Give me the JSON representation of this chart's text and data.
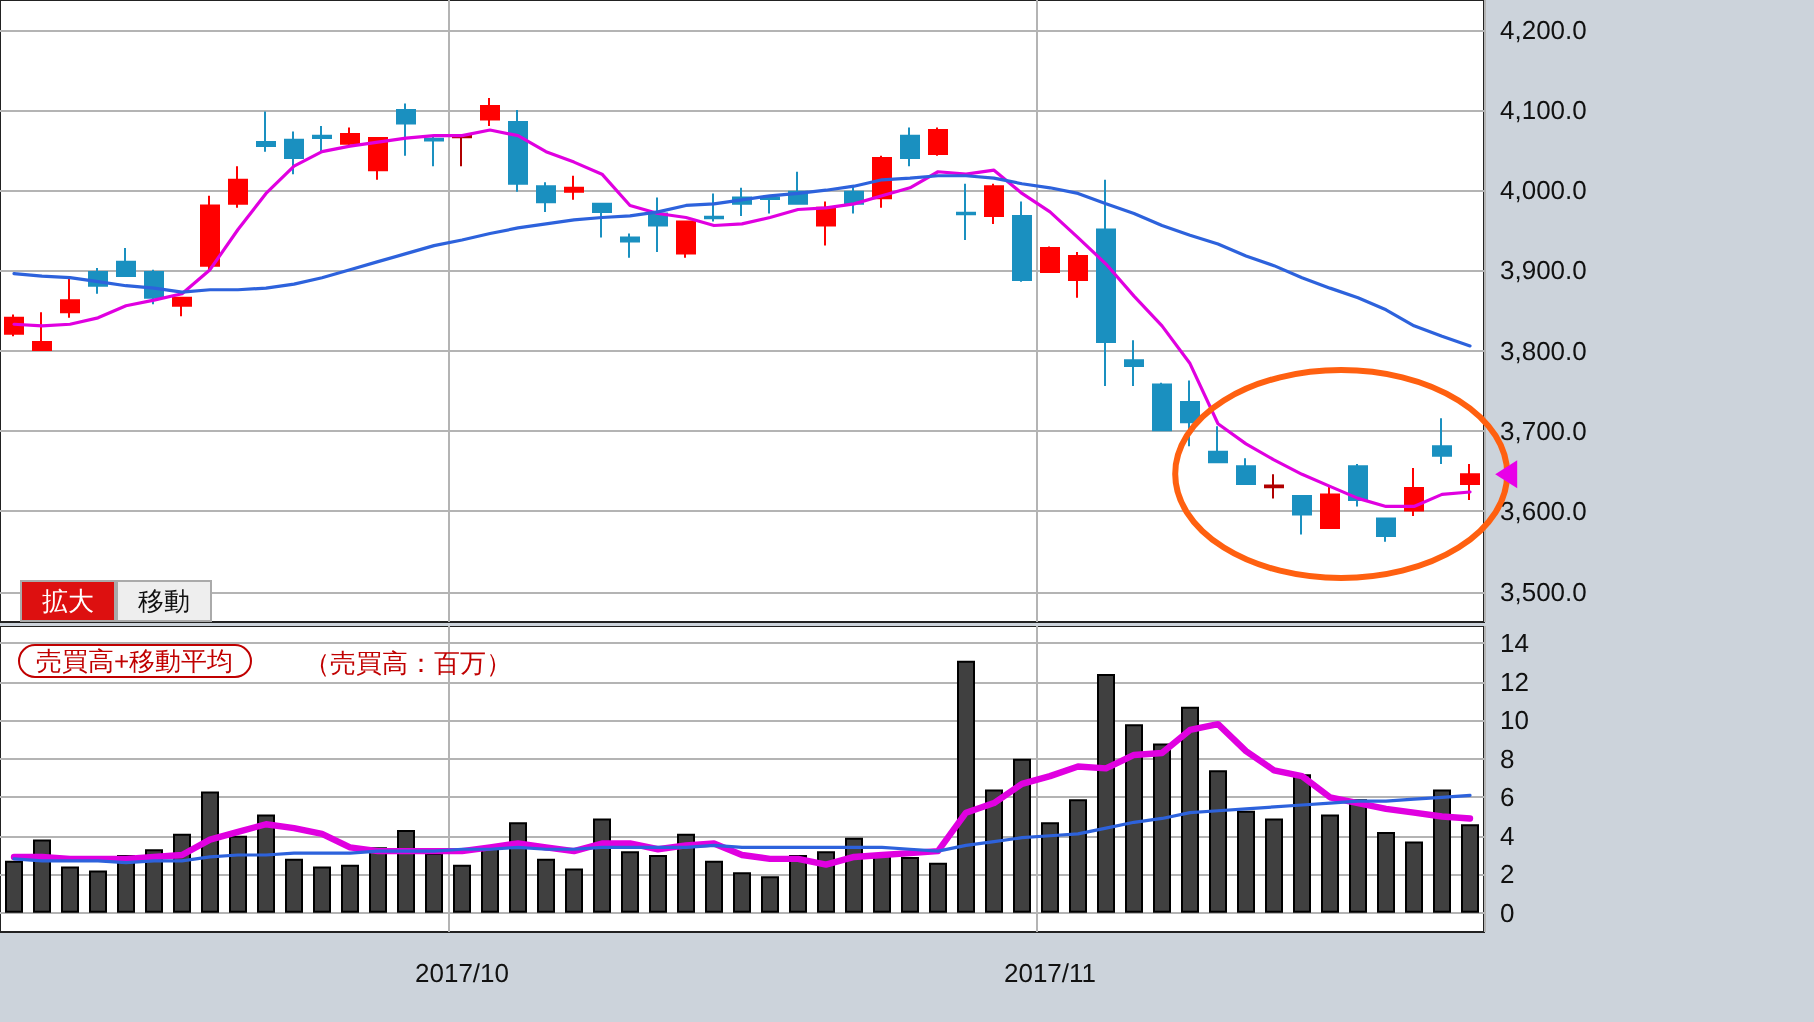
{
  "chart_data": [
    {
      "type": "candlestick",
      "categories": [
        null,
        null,
        null,
        null,
        null,
        null,
        null,
        null,
        null,
        null,
        null,
        null,
        null,
        null,
        null,
        null,
        "2017/10",
        null,
        null,
        null,
        null,
        null,
        null,
        null,
        null,
        null,
        null,
        null,
        null,
        null,
        null,
        null,
        null,
        null,
        null,
        null,
        null,
        "2017/11",
        null,
        null,
        null,
        null,
        null,
        null,
        null,
        null,
        null,
        null,
        null,
        null,
        null,
        null,
        null
      ],
      "ohlc": [
        [
          3821,
          3845,
          3818,
          3841
        ],
        [
          3801,
          3848,
          3800,
          3811
        ],
        [
          3848,
          3891,
          3841,
          3863
        ],
        [
          3898,
          3903,
          3871,
          3881
        ],
        [
          3911,
          3928,
          3892,
          3893
        ],
        [
          3898,
          3901,
          3858,
          3866
        ],
        [
          3856,
          3866,
          3843,
          3866
        ],
        [
          3906,
          3993,
          3898,
          3981
        ],
        [
          3983,
          4030,
          3978,
          4013
        ],
        [
          4060,
          4098,
          4048,
          4055
        ],
        [
          4063,
          4073,
          4020,
          4040
        ],
        [
          4068,
          4080,
          4048,
          4065
        ],
        [
          4058,
          4078,
          4055,
          4070
        ],
        [
          4025,
          4066,
          4013,
          4065
        ],
        [
          4100,
          4108,
          4043,
          4083
        ],
        [
          4064,
          4068,
          4030,
          4062
        ],
        [
          4066,
          4070,
          4030,
          4068
        ],
        [
          4088,
          4115,
          4080,
          4105
        ],
        [
          4085,
          4100,
          3998,
          4008
        ],
        [
          4005,
          4010,
          3973,
          3985
        ],
        [
          3998,
          4018,
          3988,
          4003
        ],
        [
          3983,
          3984,
          3941,
          3973
        ],
        [
          3941,
          3946,
          3916,
          3936
        ],
        [
          3971,
          3991,
          3923,
          3956
        ],
        [
          3921,
          3962,
          3916,
          3961
        ],
        [
          3967,
          3996,
          3961,
          3965
        ],
        [
          3991,
          4003,
          3968,
          3983
        ],
        [
          3991,
          3993,
          3971,
          3989
        ],
        [
          3998,
          4023,
          3982,
          3983
        ],
        [
          3956,
          3986,
          3931,
          3978
        ],
        [
          3998,
          4005,
          3971,
          3983
        ],
        [
          3990,
          4043,
          3978,
          4040
        ],
        [
          4068,
          4078,
          4030,
          4040
        ],
        [
          4045,
          4078,
          4043,
          4075
        ],
        [
          3972,
          4008,
          3938,
          3970
        ],
        [
          3968,
          4008,
          3958,
          4005
        ],
        [
          3968,
          3986,
          3886,
          3888
        ],
        [
          3898,
          3930,
          3898,
          3928
        ],
        [
          3888,
          3923,
          3866,
          3918
        ],
        [
          3951,
          4013,
          3756,
          3811
        ],
        [
          3788,
          3813,
          3756,
          3781
        ],
        [
          3758,
          3760,
          3700,
          3701
        ],
        [
          3736,
          3763,
          3681,
          3711
        ],
        [
          3674,
          3706,
          3660,
          3661
        ],
        [
          3656,
          3666,
          3633,
          3634
        ],
        [
          3630,
          3646,
          3616,
          3632
        ],
        [
          3619,
          3620,
          3571,
          3596
        ],
        [
          3579,
          3631,
          3578,
          3621
        ],
        [
          3656,
          3659,
          3606,
          3614
        ],
        [
          3591,
          3592,
          3562,
          3569
        ],
        [
          3601,
          3654,
          3594,
          3629
        ],
        [
          3681,
          3716,
          3659,
          3669
        ],
        [
          3634,
          3659,
          3614,
          3646
        ]
      ],
      "colors": [
        "#ff0000",
        "#ff0000",
        "#ff0000",
        "#1a90c0",
        "#1a90c0",
        "#1a90c0",
        "#ff0000",
        "#ff0000",
        "#ff0000",
        "#1a90c0",
        "#1a90c0",
        "#1a90c0",
        "#ff0000",
        "#ff0000",
        "#1a90c0",
        "#1a90c0",
        "#b00000",
        "#ff0000",
        "#1a90c0",
        "#1a90c0",
        "#ff0000",
        "#1a90c0",
        "#1a90c0",
        "#1a90c0",
        "#ff0000",
        "#1a90c0",
        "#1a90c0",
        "#1a90c0",
        "#1a90c0",
        "#ff0000",
        "#1a90c0",
        "#ff0000",
        "#1a90c0",
        "#ff0000",
        "#1a90c0",
        "#ff0000",
        "#1a90c0",
        "#ff0000",
        "#ff0000",
        "#1a90c0",
        "#1a90c0",
        "#1a90c0",
        "#1a90c0",
        "#1a90c0",
        "#1a90c0",
        "#b00000",
        "#1a90c0",
        "#ff0000",
        "#1a90c0",
        "#1a90c0",
        "#ff0000",
        "#1a90c0",
        "#ff0000"
      ],
      "series": [
        {
          "type": "line",
          "color": "#e000e0",
          "values": [
            3833,
            3831,
            3833,
            3841,
            3856,
            3863,
            3871,
            3901,
            3951,
            3996,
            4030,
            4048,
            4055,
            4060,
            4065,
            4068,
            4068,
            4075,
            4068,
            4048,
            4035,
            4020,
            3981,
            3971,
            3966,
            3956,
            3958,
            3966,
            3976,
            3978,
            3983,
            3993,
            4003,
            4023,
            4020,
            4025,
            3996,
            3973,
            3941,
            3908,
            3868,
            3831,
            3784,
            3709,
            3684,
            3664,
            3646,
            3631,
            3616,
            3606,
            3606,
            3621,
            3624
          ]
        },
        {
          "type": "line",
          "color": "#2d62dc",
          "values": [
            3896,
            3893,
            3891,
            3886,
            3881,
            3878,
            3873,
            3876,
            3876,
            3878,
            3883,
            3891,
            3901,
            3911,
            3921,
            3931,
            3938,
            3946,
            3953,
            3958,
            3963,
            3966,
            3968,
            3973,
            3981,
            3983,
            3988,
            3993,
            3996,
            4000,
            4005,
            4013,
            4015,
            4018,
            4018,
            4015,
            4008,
            4003,
            3996,
            3983,
            3971,
            3956,
            3944,
            3933,
            3918,
            3906,
            3891,
            3878,
            3866,
            3851,
            3831,
            3818,
            3806
          ]
        }
      ],
      "ylim": [
        3462,
        4237
      ],
      "yticks": [
        {
          "value": 3500,
          "label": "3,500.0"
        },
        {
          "value": 3600,
          "label": "3,600.0"
        },
        {
          "value": 3700,
          "label": "3,700.0"
        },
        {
          "value": 3800,
          "label": "3,800.0"
        },
        {
          "value": 3900,
          "label": "3,900.0"
        },
        {
          "value": 4000,
          "label": "4,000.0"
        },
        {
          "value": 4100,
          "label": "4,100.0"
        },
        {
          "value": 4200,
          "label": "4,200.0"
        }
      ],
      "grid": true,
      "marker": "none",
      "line_style": "solid",
      "tick_labels": "y",
      "annotations": [
        "拡大",
        "移動"
      ]
    },
    {
      "type": "bar",
      "title": "売買高+移動平均",
      "subtitle": "（売買高：百万）",
      "categories": [
        null,
        null,
        null,
        null,
        null,
        null,
        null,
        null,
        null,
        null,
        null,
        null,
        null,
        null,
        null,
        null,
        "2017/10",
        null,
        null,
        null,
        null,
        null,
        null,
        null,
        null,
        null,
        null,
        null,
        null,
        null,
        null,
        null,
        null,
        null,
        null,
        null,
        null,
        "2017/11",
        null,
        null,
        null,
        null,
        null,
        null,
        null,
        null,
        null,
        null,
        null,
        null,
        null,
        null,
        null
      ],
      "series": [
        {
          "type": "bar",
          "color": "#404040",
          "values": [
            2.7,
            3.8,
            2.4,
            2.2,
            3.0,
            3.3,
            4.1,
            6.3,
            4.0,
            5.1,
            2.8,
            2.4,
            2.5,
            3.4,
            4.3,
            3.1,
            2.5,
            3.4,
            4.7,
            2.8,
            2.3,
            4.9,
            3.2,
            3.0,
            4.1,
            2.7,
            2.1,
            1.9,
            3.0,
            3.2,
            3.9,
            3.0,
            2.9,
            2.6,
            13.1,
            6.4,
            8.0,
            4.7,
            5.9,
            12.4,
            9.8,
            8.8,
            10.7,
            7.4,
            5.3,
            4.9,
            7.2,
            5.1,
            5.9,
            4.2,
            3.7,
            6.4,
            4.6
          ]
        },
        {
          "type": "line",
          "color": "#e000e0",
          "values": [
            2.9,
            2.9,
            2.8,
            2.8,
            2.8,
            2.9,
            3.0,
            3.8,
            4.2,
            4.6,
            4.4,
            4.1,
            3.4,
            3.2,
            3.2,
            3.2,
            3.2,
            3.4,
            3.6,
            3.4,
            3.2,
            3.6,
            3.6,
            3.3,
            3.5,
            3.6,
            3.0,
            2.8,
            2.8,
            2.5,
            2.9,
            3.0,
            3.1,
            3.2,
            5.2,
            5.7,
            6.7,
            7.1,
            7.6,
            7.5,
            8.2,
            8.3,
            9.5,
            9.8,
            8.4,
            7.4,
            7.1,
            6.0,
            5.7,
            5.4,
            5.2,
            5.0,
            4.9
          ]
        },
        {
          "type": "line",
          "color": "#2d62dc",
          "values": [
            2.8,
            2.7,
            2.7,
            2.7,
            2.6,
            2.7,
            2.7,
            2.9,
            3.0,
            3.0,
            3.1,
            3.1,
            3.1,
            3.2,
            3.2,
            3.2,
            3.3,
            3.3,
            3.4,
            3.3,
            3.3,
            3.4,
            3.4,
            3.4,
            3.4,
            3.5,
            3.4,
            3.4,
            3.4,
            3.4,
            3.4,
            3.4,
            3.3,
            3.2,
            3.5,
            3.7,
            3.9,
            4.0,
            4.1,
            4.4,
            4.7,
            4.9,
            5.2,
            5.3,
            5.4,
            5.5,
            5.6,
            5.7,
            5.8,
            5.8,
            5.9,
            6.0,
            6.1
          ]
        }
      ],
      "ylim": [
        -1,
        14.9
      ],
      "yticks": [
        0,
        2,
        4,
        6,
        8,
        10,
        12,
        14
      ],
      "grid": true,
      "marker": "none",
      "line_style": "solid"
    }
  ]
}
